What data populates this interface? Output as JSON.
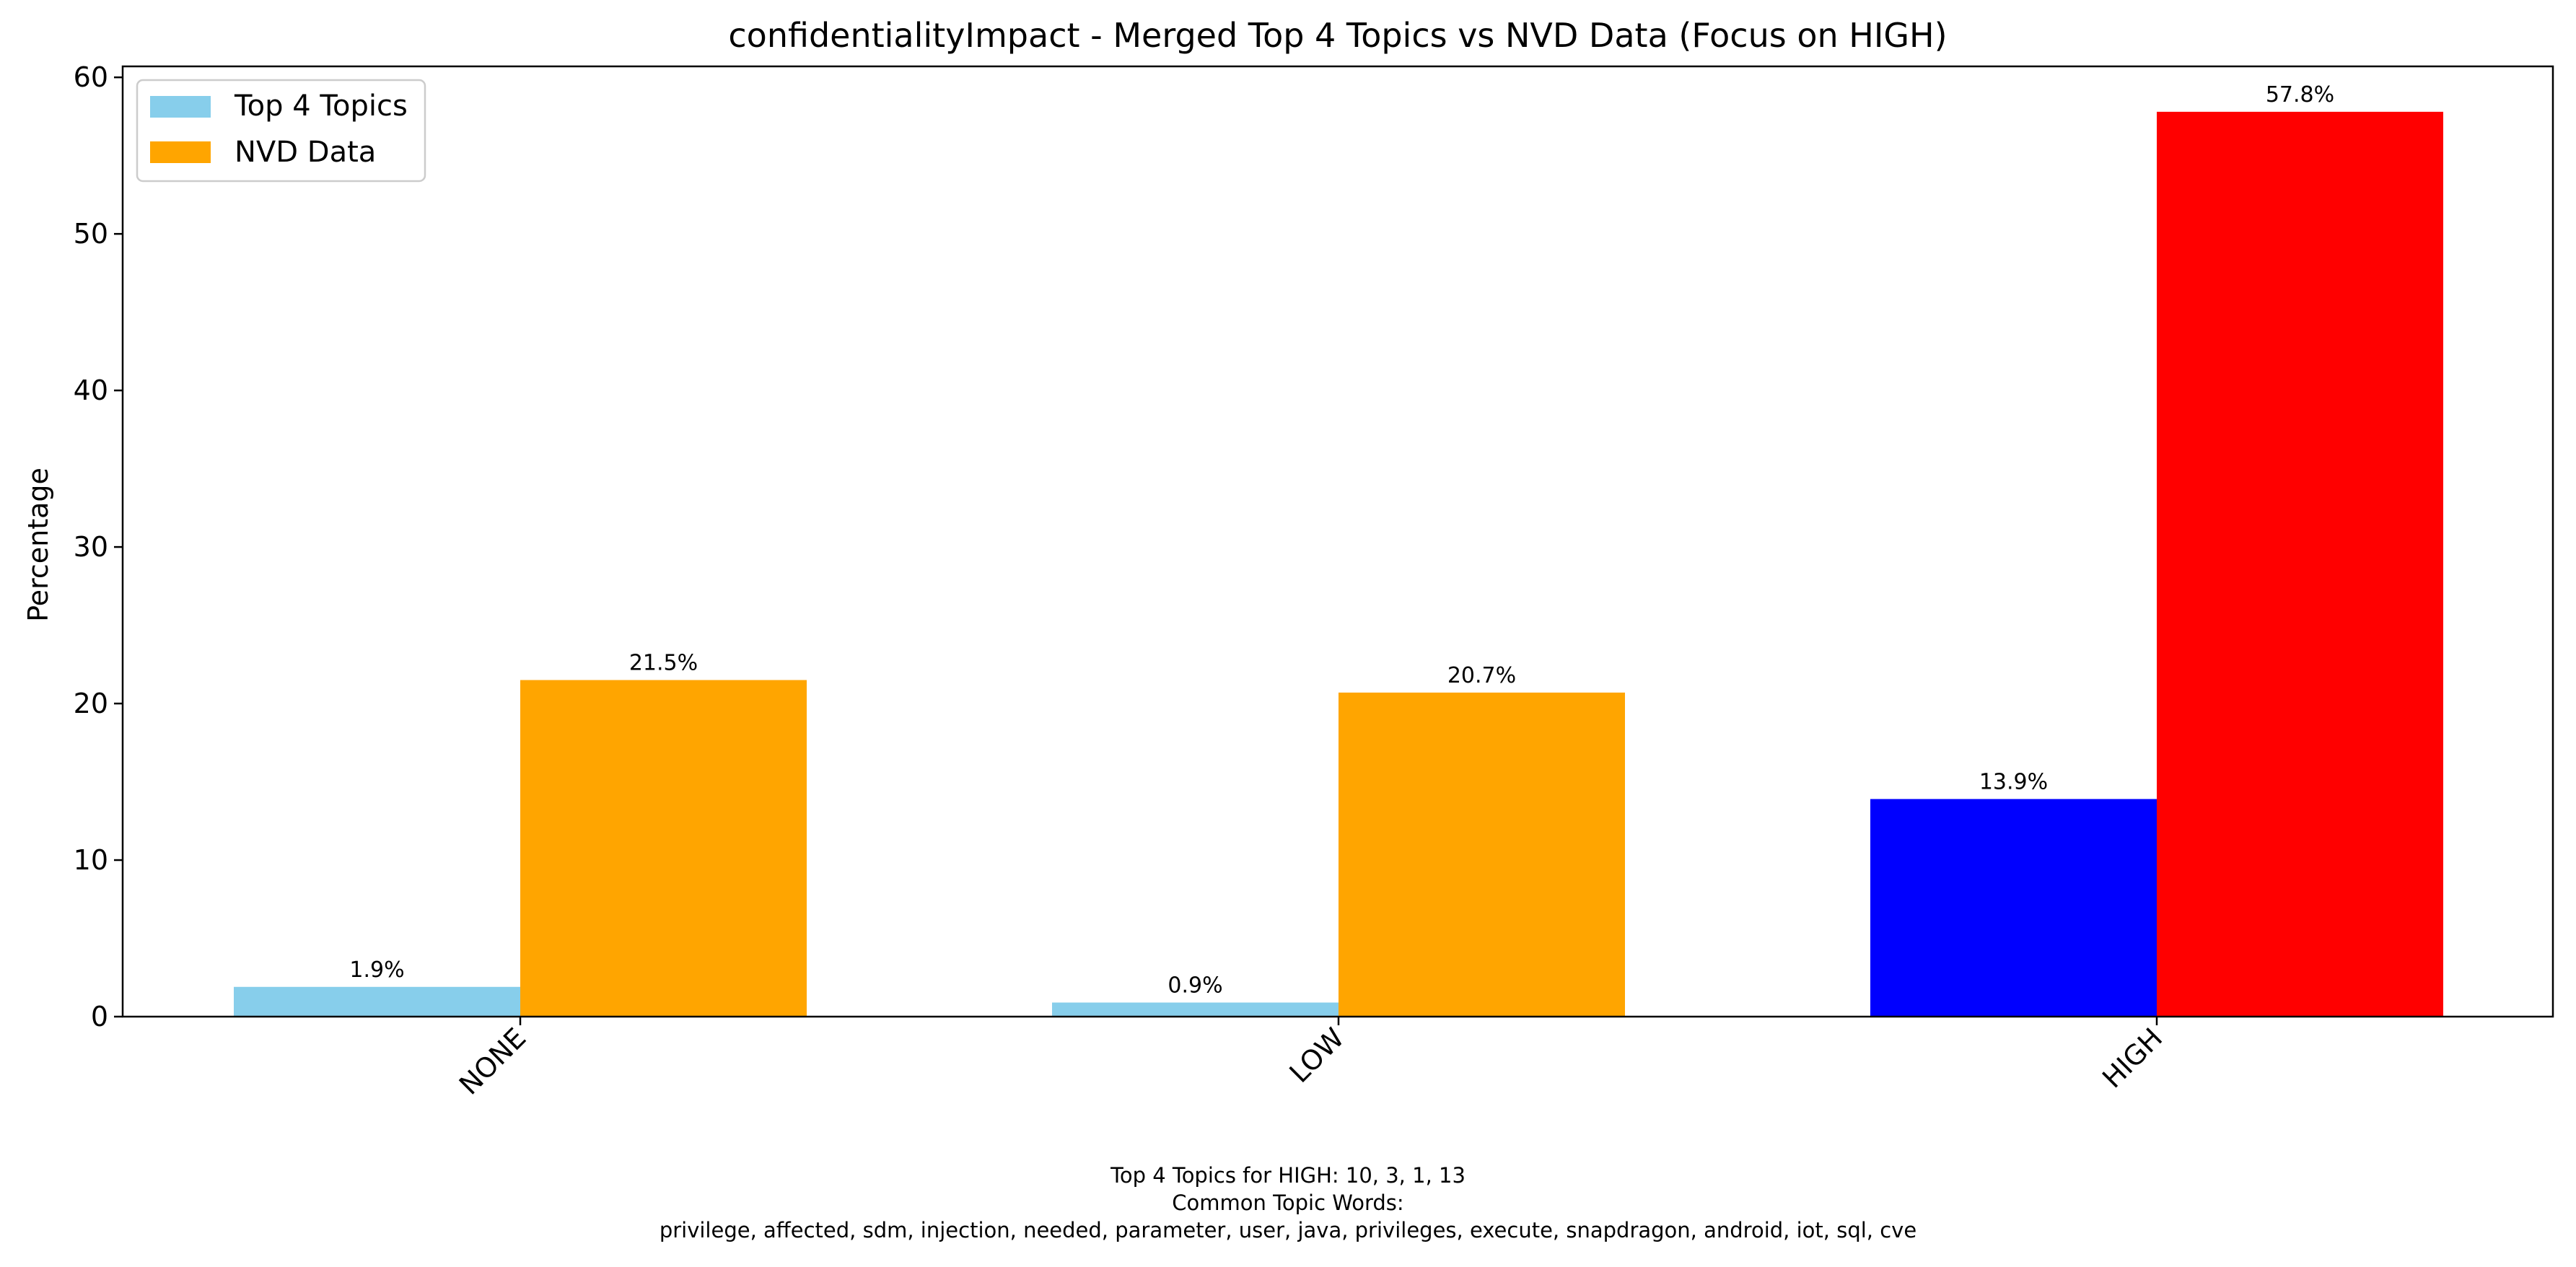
{
  "chart_data": {
    "type": "bar",
    "title": "confidentialityImpact - Merged Top 4 Topics vs NVD Data (Focus on HIGH)",
    "xlabel": "",
    "ylabel": "Percentage",
    "categories": [
      "NONE",
      "LOW",
      "HIGH"
    ],
    "series": [
      {
        "name": "Top 4 Topics",
        "values": [
          1.9,
          0.9,
          13.9
        ],
        "color": "#87ceeb",
        "bar_colors": [
          "#87ceeb",
          "#87ceeb",
          "#0000ff"
        ]
      },
      {
        "name": "NVD Data",
        "values": [
          21.5,
          20.7,
          57.8
        ],
        "color": "#ffa500",
        "bar_colors": [
          "#ffa500",
          "#ffa500",
          "#ff0000"
        ]
      }
    ],
    "data_labels": [
      [
        "1.9%",
        "0.9%",
        "13.9%"
      ],
      [
        "21.5%",
        "20.7%",
        "57.8%"
      ]
    ],
    "ylim": [
      0,
      60.7
    ],
    "yticks": [
      0,
      10,
      20,
      30,
      40,
      50,
      60
    ],
    "grid": false,
    "legend_position": "top-left",
    "highlight_category": "HIGH"
  },
  "footer": {
    "line1": "Top 4 Topics for HIGH: 10, 3, 1, 13",
    "line2": "Common Topic Words:",
    "line3": "privilege,  affected,  sdm,  injection,  needed,  parameter,  user,  java,  privileges,  execute,  snapdragon,  android,  iot,  sql,  cve"
  }
}
